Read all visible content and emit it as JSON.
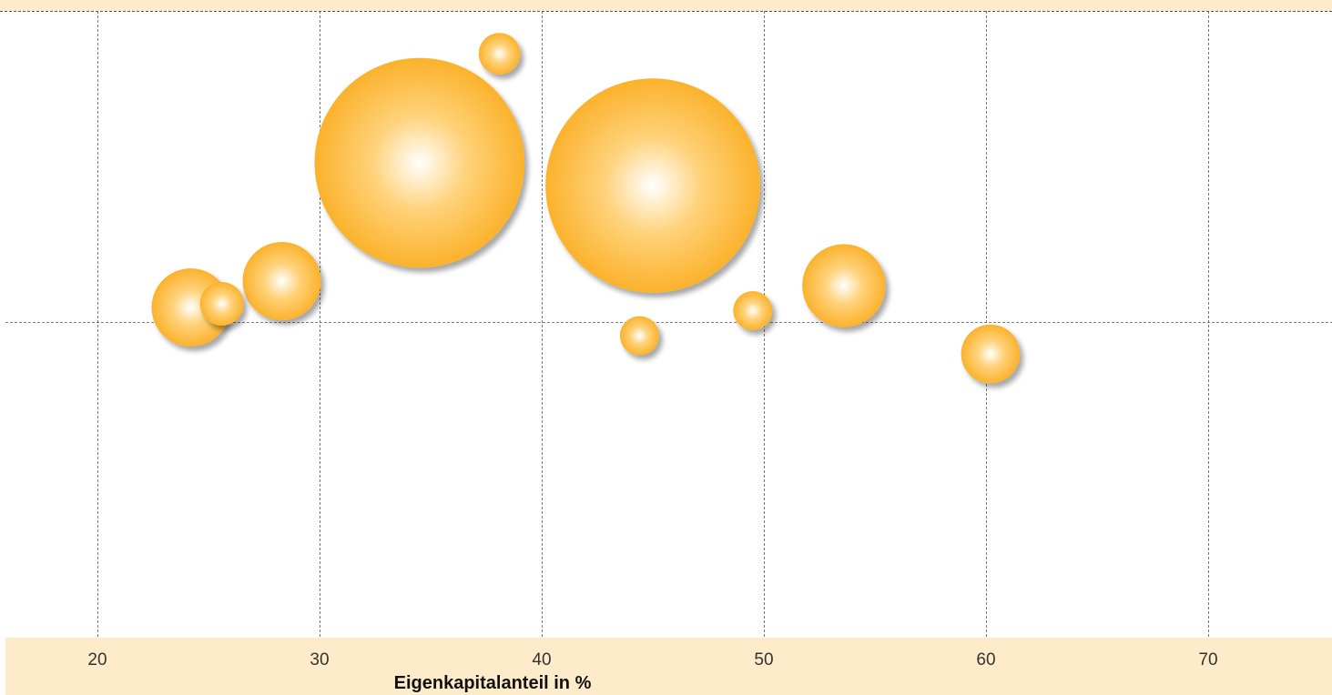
{
  "chart_data": {
    "type": "scatter",
    "title": "",
    "xlabel": "Eigenkapitalanteil in %",
    "ylabel": "",
    "xlim": [
      16,
      75.5
    ],
    "xticks": [
      20,
      30,
      40,
      50,
      60,
      70
    ],
    "grid": true,
    "legend": "none",
    "series": [
      {
        "points": [
          {
            "x": 24.2,
            "y": 3.2,
            "size": 1.6
          },
          {
            "x": 25.6,
            "y": 4.0,
            "size": 0.5
          },
          {
            "x": 28.3,
            "y": 9.0,
            "size": 1.6
          },
          {
            "x": 34.5,
            "y": 35.0,
            "size": 11.5
          },
          {
            "x": 38.1,
            "y": 59.0,
            "size": 0.45
          },
          {
            "x": 44.4,
            "y": -3.0,
            "size": 0.4
          },
          {
            "x": 45.0,
            "y": 30.0,
            "size": 12.0
          },
          {
            "x": 49.5,
            "y": 2.5,
            "size": 0.4
          },
          {
            "x": 53.6,
            "y": 8.0,
            "size": 1.8
          },
          {
            "x": 60.2,
            "y": -7.0,
            "size": 0.9
          }
        ]
      }
    ]
  },
  "colors": {
    "bubble_edge": "#fbb22c",
    "bubble_mid": "#ffd27a",
    "bubble_center": "#ffffff",
    "band": "#fdebc9",
    "grid": "#555555"
  }
}
